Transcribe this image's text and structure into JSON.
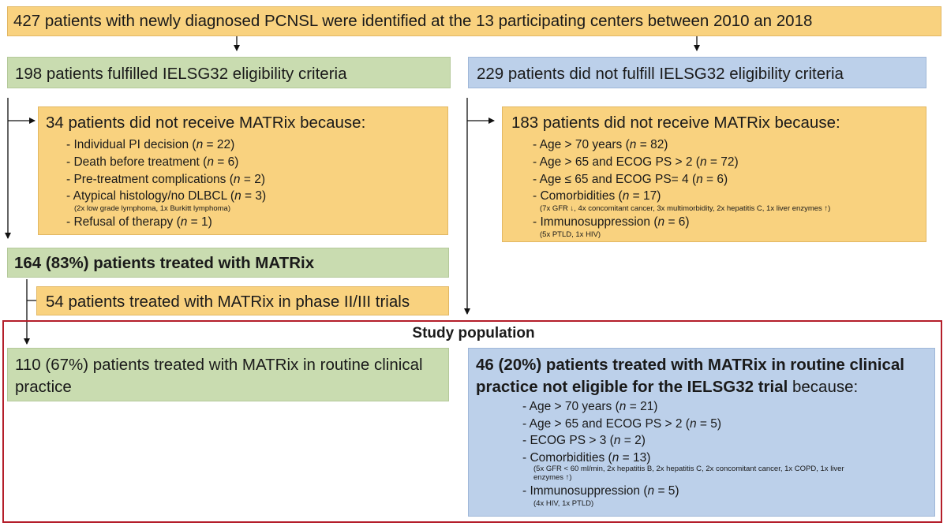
{
  "top": {
    "text": "427 patients with newly diagnosed PCNSL were identified at the 13 participating centers between 2010 an 2018"
  },
  "eligible": {
    "text": "198 patients fulfilled IELSG32 eligibility criteria"
  },
  "not_eligible": {
    "text": "229 patients did not fulfill IELSG32 eligibility criteria"
  },
  "left_excluded": {
    "title": "34 patients did not receive MATRix because:",
    "items": [
      {
        "pre": "- Individual PI decision (",
        "n": "n",
        "post": " = 22)"
      },
      {
        "pre": "- Death before treatment (",
        "n": "n",
        "post": " = 6)"
      },
      {
        "pre": "- Pre-treatment complications (",
        "n": "n",
        "post": " = 2)"
      },
      {
        "pre": "- Atypical histology/no DLBCL (",
        "n": "n",
        "post": " = 3)",
        "note": "(2x low grade lymphoma, 1x Burkitt lymphoma)"
      },
      {
        "pre": "- Refusal of therapy (",
        "n": "n",
        "post": " = 1)"
      }
    ]
  },
  "right_excluded": {
    "title": "183 patients did not receive MATRix because:",
    "items": [
      {
        "pre": "- Age > 70 years (",
        "n": "n",
        "post": " = 82)"
      },
      {
        "pre": "- Age > 65 and ECOG PS > 2 (",
        "n": "n",
        "post": " = 72)"
      },
      {
        "pre": "- Age ≤ 65 and ECOG PS= 4 (",
        "n": "n",
        "post": " = 6)"
      },
      {
        "pre": "- Comorbidities (",
        "n": "n",
        "post": " = 17)",
        "note": "(7x GFR ↓, 4x concomitant cancer, 3x multimorbidity, 2x hepatitis C, 1x liver enzymes ↑)"
      },
      {
        "pre": "- Immunosuppression (",
        "n": "n",
        "post": " = 6)",
        "note": "(5x PTLD, 1x HIV)"
      }
    ]
  },
  "treated": {
    "text": "164 (83%) patients treated with MATRix"
  },
  "trials": {
    "text": "54 patients treated with MATRix in phase II/III trials"
  },
  "study": {
    "title": "Study population",
    "routine_line1": "110 (67%) patients treated with MATRix in routine clinical",
    "routine_line2": "practice",
    "noneligible_line1": "46 (20%) patients treated with MATRix in routine clinical",
    "noneligible_line2_bold": "practice not eligible for the IELSG32 trial",
    "noneligible_line2_rest": " because:",
    "items": [
      {
        "pre": "- Age > 70 years (",
        "n": "n",
        "post": " = 21)"
      },
      {
        "pre": "- Age > 65 and ECOG PS > 2 (",
        "n": "n",
        "post": " = 5)"
      },
      {
        "pre": "- ECOG PS > 3 (",
        "n": "n",
        "post": " = 2)"
      },
      {
        "pre": "- Comorbidities (",
        "n": "n",
        "post": " = 13)",
        "note": "(5x GFR < 60 ml/min, 2x hepatitis B, 2x hepatitis C, 2x concomitant cancer, 1x COPD, 1x liver",
        "note2": "enzymes ↑)"
      },
      {
        "pre": "- Immunosuppression (",
        "n": "n",
        "post": " = 5)",
        "note": "(4x HIV, 1x PTLD)"
      }
    ]
  }
}
